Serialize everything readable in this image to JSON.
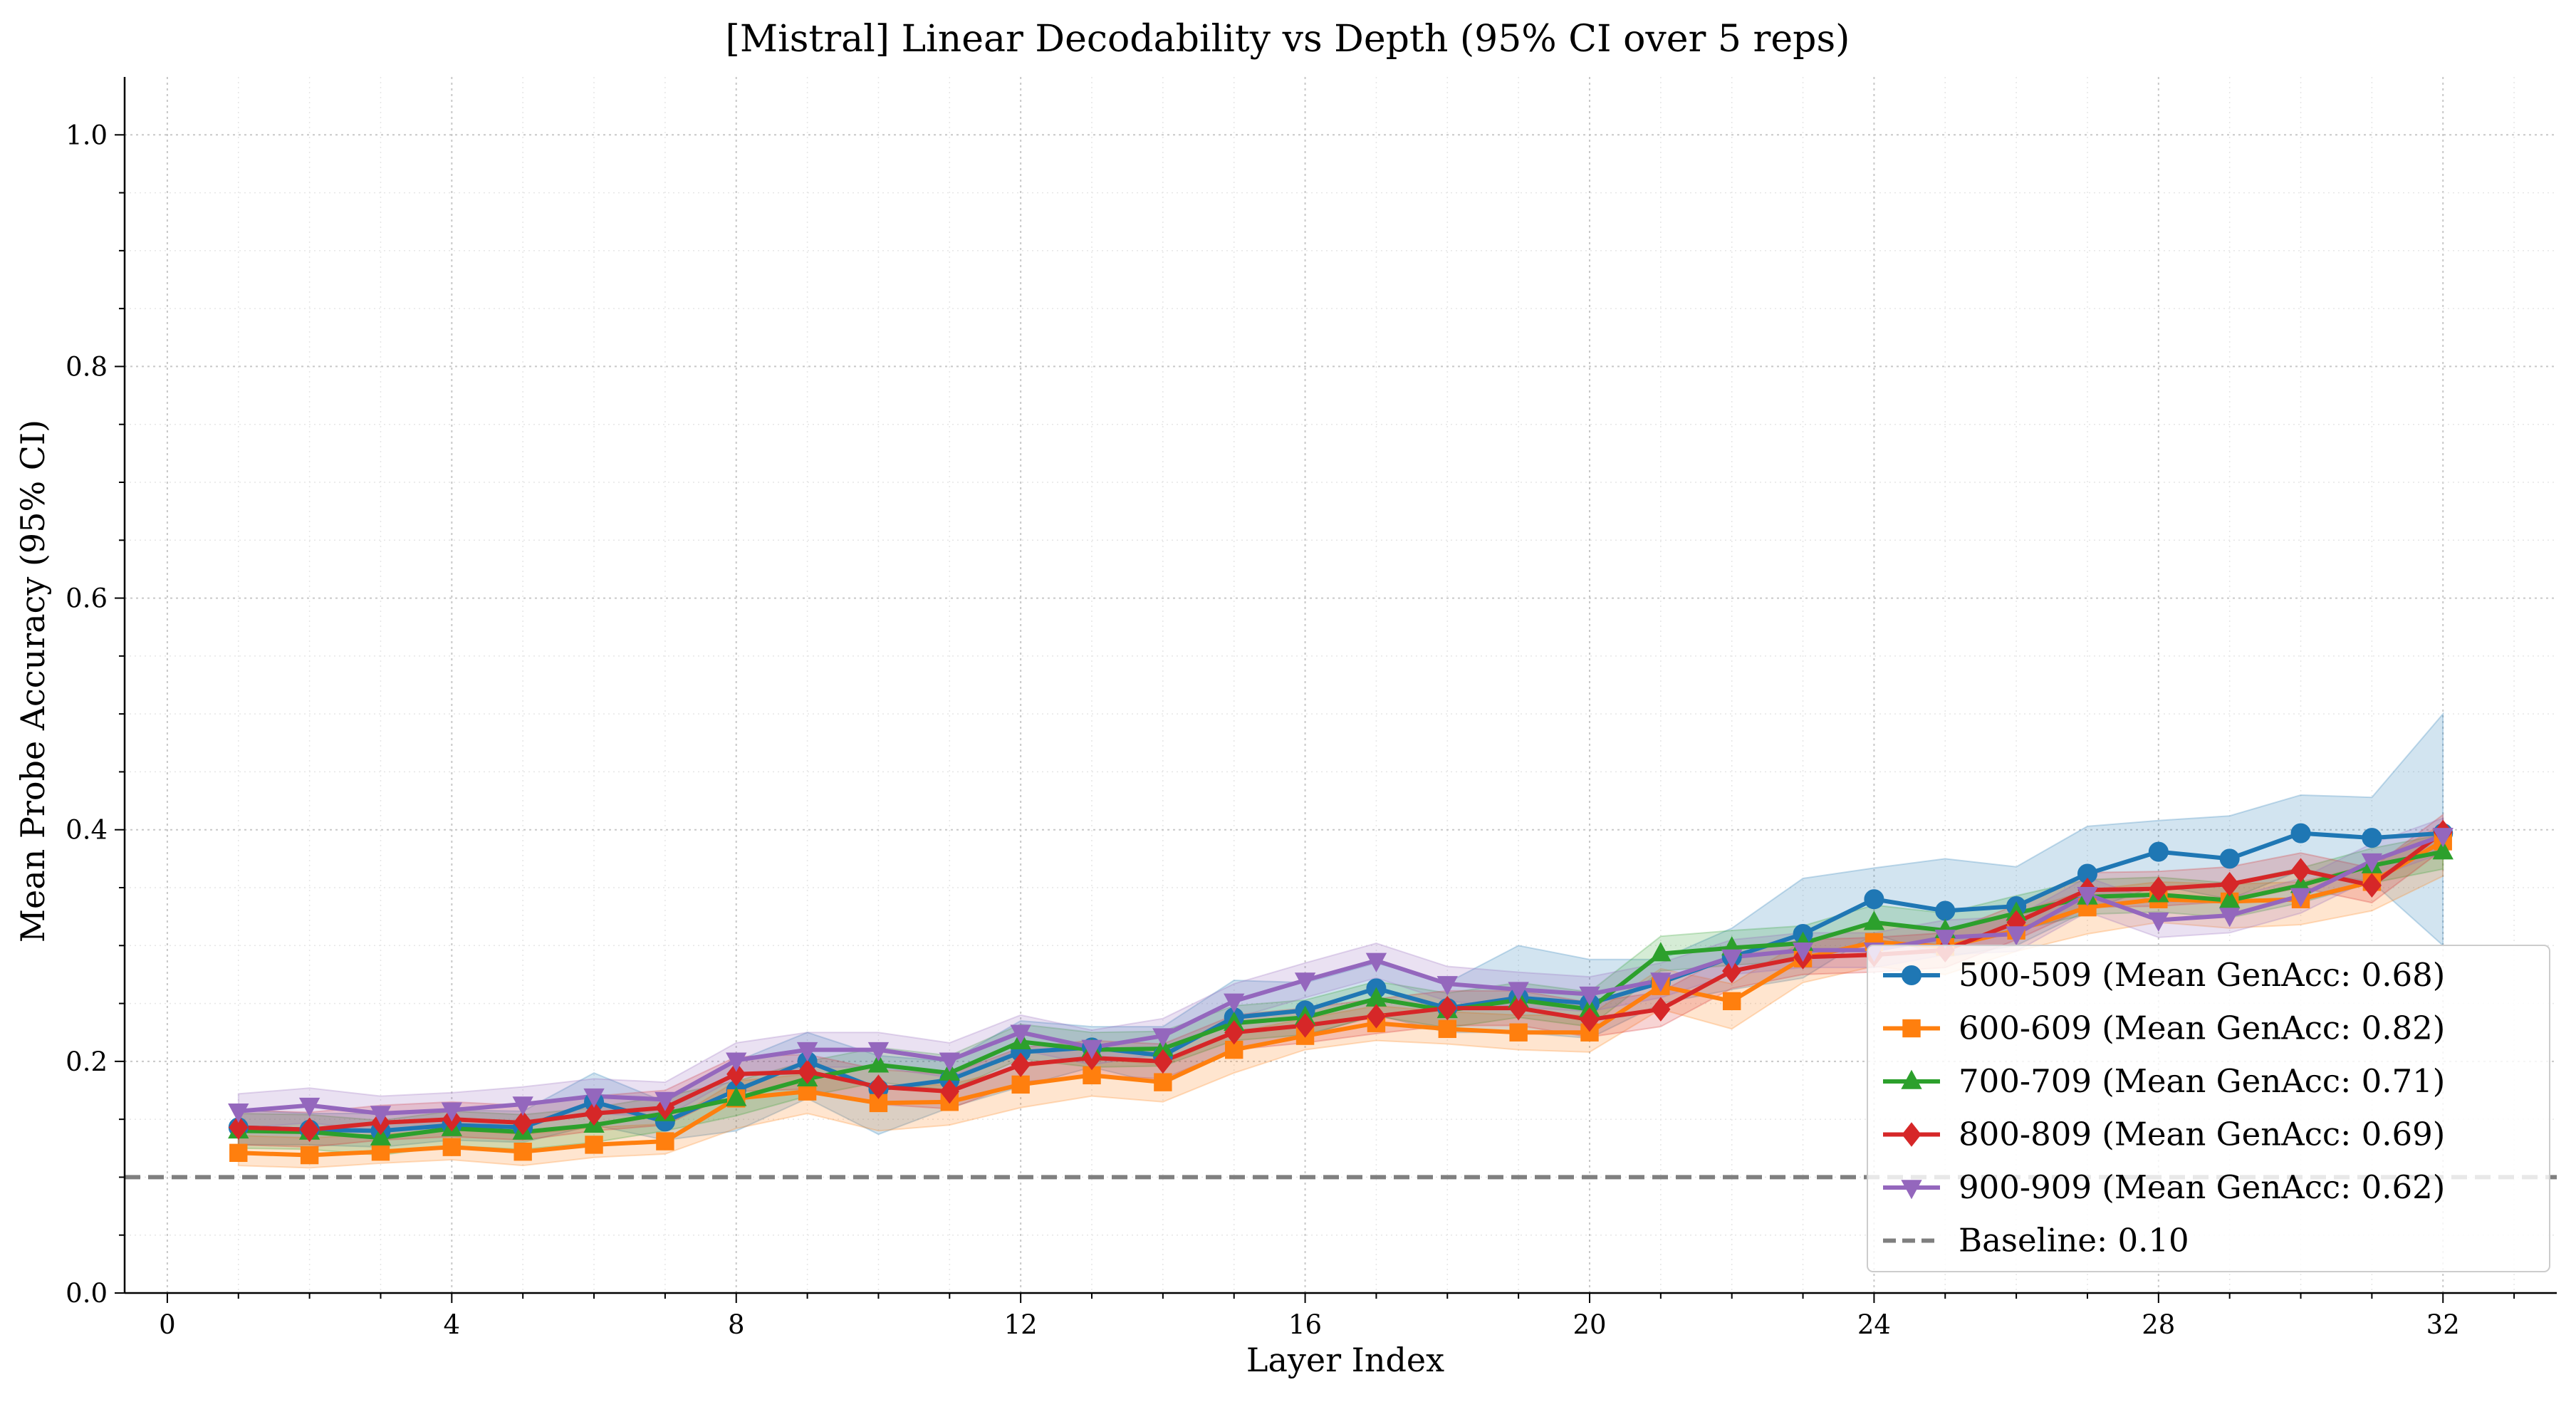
{
  "chart_data": {
    "type": "line",
    "title": "[Mistral] Linear Decodability vs Depth (95% CI over 5 reps)",
    "xlabel": "Layer Index",
    "ylabel": "Mean Probe Accuracy (95% CI)",
    "xlim": [
      -0.6,
      33.6
    ],
    "ylim": [
      0.0,
      1.05
    ],
    "xticks": [
      "0",
      "4",
      "8",
      "12",
      "16",
      "20",
      "24",
      "28",
      "32"
    ],
    "yticks": [
      "0.0",
      "0.2",
      "0.4",
      "0.6",
      "0.8",
      "1.0"
    ],
    "grid": true,
    "legend_position": "bottom-right",
    "x": [
      1,
      2,
      3,
      4,
      5,
      6,
      7,
      8,
      9,
      10,
      11,
      12,
      13,
      14,
      15,
      16,
      17,
      18,
      19,
      20,
      21,
      22,
      23,
      24,
      25,
      26,
      27,
      28,
      29,
      30,
      31,
      32
    ],
    "series": [
      {
        "name": "500-509 (Mean GenAcc: 0.68)",
        "color": "#1f77b4",
        "marker": "circle",
        "values": [
          0.143,
          0.141,
          0.14,
          0.145,
          0.143,
          0.165,
          0.148,
          0.175,
          0.2,
          0.176,
          0.184,
          0.208,
          0.212,
          0.205,
          0.238,
          0.244,
          0.263,
          0.246,
          0.255,
          0.25,
          0.268,
          0.29,
          0.31,
          0.34,
          0.33,
          0.334,
          0.362,
          0.381,
          0.375,
          0.397,
          0.393,
          0.397
        ],
        "ci_low": [
          0.128,
          0.128,
          0.126,
          0.132,
          0.13,
          0.145,
          0.132,
          0.14,
          0.168,
          0.137,
          0.16,
          0.178,
          0.195,
          0.18,
          0.21,
          0.222,
          0.24,
          0.225,
          0.225,
          0.22,
          0.25,
          0.262,
          0.272,
          0.31,
          0.29,
          0.3,
          0.33,
          0.352,
          0.34,
          0.365,
          0.355,
          0.3
        ],
        "ci_high": [
          0.158,
          0.155,
          0.155,
          0.158,
          0.157,
          0.19,
          0.165,
          0.2,
          0.225,
          0.205,
          0.2,
          0.235,
          0.23,
          0.23,
          0.27,
          0.268,
          0.285,
          0.268,
          0.3,
          0.288,
          0.288,
          0.315,
          0.358,
          0.367,
          0.375,
          0.368,
          0.403,
          0.408,
          0.412,
          0.43,
          0.428,
          0.5
        ]
      },
      {
        "name": "600-609 (Mean GenAcc: 0.82)",
        "color": "#ff7f0e",
        "marker": "square",
        "values": [
          0.121,
          0.119,
          0.122,
          0.126,
          0.122,
          0.128,
          0.131,
          0.168,
          0.174,
          0.164,
          0.165,
          0.18,
          0.188,
          0.182,
          0.21,
          0.222,
          0.233,
          0.228,
          0.225,
          0.225,
          0.265,
          0.252,
          0.289,
          0.303,
          0.299,
          0.313,
          0.333,
          0.34,
          0.338,
          0.34,
          0.355,
          0.39
        ],
        "ci_low": [
          0.11,
          0.108,
          0.112,
          0.115,
          0.11,
          0.117,
          0.12,
          0.142,
          0.155,
          0.14,
          0.145,
          0.16,
          0.17,
          0.165,
          0.19,
          0.21,
          0.218,
          0.215,
          0.21,
          0.208,
          0.245,
          0.228,
          0.268,
          0.282,
          0.275,
          0.295,
          0.31,
          0.32,
          0.315,
          0.318,
          0.33,
          0.36
        ]
      },
      {
        "name": "700-709 (Mean GenAcc: 0.71)",
        "color": "#2ca02c",
        "marker": "triangle-up",
        "values": [
          0.14,
          0.139,
          0.134,
          0.142,
          0.139,
          0.145,
          0.155,
          0.168,
          0.185,
          0.197,
          0.19,
          0.217,
          0.21,
          0.211,
          0.233,
          0.238,
          0.254,
          0.244,
          0.253,
          0.245,
          0.293,
          0.298,
          0.302,
          0.32,
          0.313,
          0.328,
          0.342,
          0.344,
          0.339,
          0.352,
          0.369,
          0.381
        ]
      },
      {
        "name": "800-809 (Mean GenAcc: 0.69)",
        "color": "#d62728",
        "marker": "diamond",
        "values": [
          0.143,
          0.141,
          0.147,
          0.15,
          0.147,
          0.155,
          0.16,
          0.189,
          0.191,
          0.178,
          0.174,
          0.197,
          0.203,
          0.2,
          0.225,
          0.231,
          0.239,
          0.246,
          0.246,
          0.236,
          0.245,
          0.278,
          0.29,
          0.292,
          0.296,
          0.32,
          0.348,
          0.349,
          0.353,
          0.365,
          0.352,
          0.398
        ]
      },
      {
        "name": "900-909 (Mean GenAcc: 0.62)",
        "color": "#9467bd",
        "marker": "triangle-down",
        "values": [
          0.157,
          0.162,
          0.155,
          0.158,
          0.163,
          0.17,
          0.167,
          0.201,
          0.21,
          0.21,
          0.201,
          0.225,
          0.212,
          0.222,
          0.252,
          0.27,
          0.287,
          0.267,
          0.262,
          0.258,
          0.27,
          0.29,
          0.296,
          0.296,
          0.307,
          0.31,
          0.344,
          0.322,
          0.326,
          0.343,
          0.373,
          0.395
        ]
      }
    ],
    "baseline": {
      "name": "Baseline: 0.10",
      "value": 0.1,
      "color": "#7f7f7f",
      "style": "dashed"
    }
  }
}
